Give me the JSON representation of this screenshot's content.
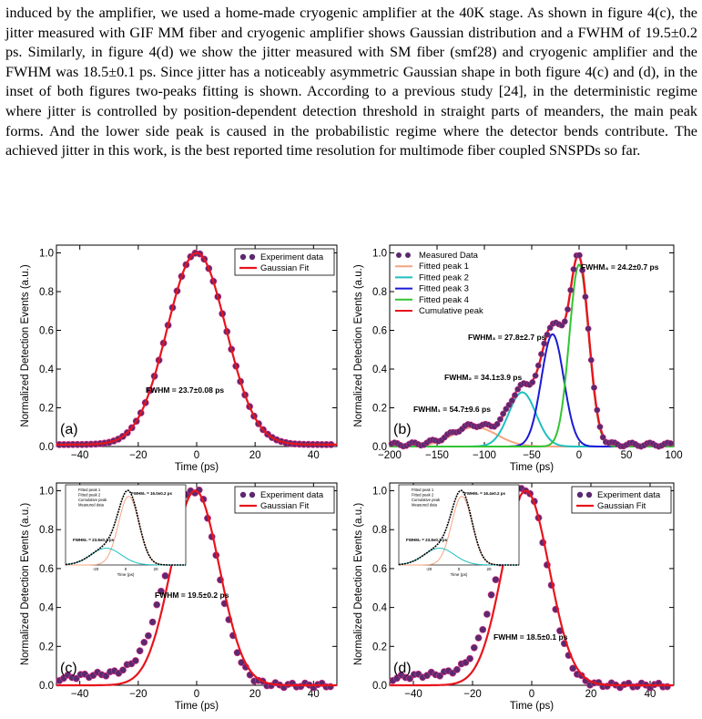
{
  "paragraph": "induced by the amplifier, we used a home-made cryogenic amplifier at the 40K stage. As shown in figure 4(c), the jitter measured with GIF MM fiber and cryogenic amplifier shows Gaussian distribution and a FWHM of 19.5±0.2 ps. Similarly, in figure 4(d) we show the jitter measured with SM fiber (smf28) and cryogenic amplifier and the FWHM was 18.5±0.1 ps. Since jitter has a noticeably asymmetric Gaussian shape in both figure 4(c) and (d), in the inset of both figures two-peaks fitting is shown. According to a previous study [24], in the deterministic regime where jitter is controlled by position-dependent detection threshold in straight parts of meanders, the main peak forms. And the lower side peak is caused in the probabilistic regime where the detector bends contribute. The achieved jitter in this work, is the best reported time resolution for multimode fiber coupled SNSPDs so far.",
  "colors": {
    "marker": "#5b2a6e",
    "fit": "#e8141c",
    "peak1": "#f4a582",
    "peak2": "#1fbfbf",
    "peak3": "#1a1ad6",
    "peak4": "#33c433"
  },
  "chart_data": [
    {
      "type": "scatter",
      "panel_label": "(a)",
      "xlabel": "Time (ps)",
      "ylabel": "Normalized Detection Events (a.u.)",
      "xlim": [
        -48,
        48
      ],
      "ylim": [
        0,
        1.04
      ],
      "xticks": [
        -40,
        -20,
        0,
        20,
        40
      ],
      "yticks": [
        0.0,
        0.2,
        0.4,
        0.6,
        0.8,
        1.0
      ],
      "legend": [
        "Experiment data",
        "Gaussian Fit"
      ],
      "legend_position": "top-right",
      "annotation": "FWHM = 23.7±0.08 ps",
      "gaussian": {
        "mu": 0,
        "fwhm": 23.7,
        "baseline": 0.01
      }
    },
    {
      "type": "line",
      "panel_label": "(b)",
      "xlabel": "Time (ps)",
      "ylabel": "Normalized Detection Events (a.u.)",
      "xlim": [
        -200,
        100
      ],
      "ylim": [
        0,
        1.04
      ],
      "xticks": [
        -200,
        -150,
        -100,
        -50,
        0,
        50,
        100
      ],
      "yticks": [
        0.0,
        0.2,
        0.4,
        0.6,
        0.8,
        1.0
      ],
      "legend": [
        "Measured Data",
        "Fitted peak 1",
        "Fitted peak 2",
        "Fitted peak 3",
        "Fitted peak 4",
        "Cumulative peak"
      ],
      "legend_position": "top-left",
      "annotations": [
        "FWHM₄ = 24.2±0.7 ps",
        "FWHM₃ = 27.8±2.7 ps",
        "FWHM₂ = 34.1±3.9 ps",
        "FWHM₁ = 54.7±9.6 ps"
      ],
      "peaks": [
        {
          "mu": -110,
          "fwhm": 54.7,
          "amp": 0.1
        },
        {
          "mu": -60,
          "fwhm": 34.1,
          "amp": 0.28
        },
        {
          "mu": -28,
          "fwhm": 27.8,
          "amp": 0.58
        },
        {
          "mu": 0,
          "fwhm": 24.2,
          "amp": 0.94
        }
      ]
    },
    {
      "type": "scatter",
      "panel_label": "(c)",
      "xlabel": "Time (ps)",
      "ylabel": "Normalized Detection Events (a.u.)",
      "xlim": [
        -48,
        48
      ],
      "ylim": [
        0,
        1.04
      ],
      "xticks": [
        -40,
        -20,
        0,
        20,
        40
      ],
      "yticks": [
        0.0,
        0.2,
        0.4,
        0.6,
        0.8,
        1.0
      ],
      "legend": [
        "Experiment data",
        "Gaussian Fit"
      ],
      "legend_position": "top-right",
      "annotation": "FWHM = 19.5±0.2 ps",
      "gaussian": {
        "mu": -0.5,
        "fwhm": 19.5,
        "baseline": 0.0
      },
      "inset": {
        "legend": [
          "Fitted peak 1",
          "Fitted peak 2",
          "Cumulative peak",
          "Measured data"
        ],
        "annotations": [
          "FWHM₁ = 16.0±0.2 ps",
          "FWHM₂ = 23.8±0.2 ps"
        ],
        "xlabel": "Time (ps)",
        "ylabel": "Normalized Detection Events (a.u.)"
      }
    },
    {
      "type": "scatter",
      "panel_label": "(d)",
      "xlabel": "Time (ps)",
      "ylabel": "Normalized Detection Events (a.u.)",
      "xlim": [
        -48,
        48
      ],
      "ylim": [
        0,
        1.04
      ],
      "xticks": [
        -40,
        -20,
        0,
        20,
        40
      ],
      "yticks": [
        0.0,
        0.2,
        0.4,
        0.6,
        0.8,
        1.0
      ],
      "legend": [
        "Experiment data",
        "Gaussian Fit"
      ],
      "legend_position": "top-right",
      "annotation": "FWHM = 18.5±0.1 ps",
      "gaussian": {
        "mu": -2,
        "fwhm": 18.5,
        "baseline": 0.0
      },
      "inset": {
        "legend": [
          "Fitted peak 1",
          "Fitted peak 2",
          "Cumulative peak",
          "Measured data"
        ],
        "annotations": [
          "FWHM₁ = 16.4±0.2 ps",
          "FWHM₂ = 23.8±0.2 ps"
        ],
        "xlabel": "Time (ps)",
        "ylabel": "Normalized Detection Events (a.u.)"
      }
    }
  ]
}
